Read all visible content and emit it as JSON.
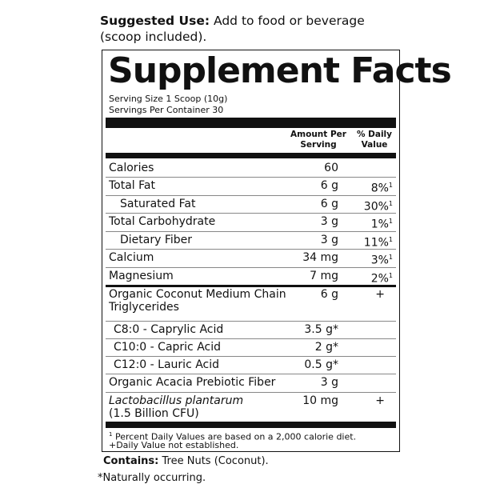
{
  "suggested_use": {
    "label": "Suggested Use:",
    "text": " Add to food or beverage",
    "text2": "(scoop included)."
  },
  "title": "Supplement Facts",
  "serving_size": "Serving Size 1 Scoop (10g)",
  "servings_per_container": "Servings Per Container 30",
  "headers": {
    "amount_1": "Amount Per",
    "amount_2": "Serving",
    "dv_1": "% Daily",
    "dv_2": "Value"
  },
  "rows": [
    {
      "name": "Calories",
      "amount": "60",
      "dv": ""
    },
    {
      "name": "Total Fat",
      "amount": "6 g",
      "dv": "8%",
      "sup": "1"
    },
    {
      "name": "Saturated Fat",
      "amount": "6 g",
      "dv": "30%",
      "sup": "1"
    },
    {
      "name": "Total Carbohydrate",
      "amount": "3 g",
      "dv": "1%",
      "sup": "1"
    },
    {
      "name": "Dietary Fiber",
      "amount": "3 g",
      "dv": "11%",
      "sup": "1"
    },
    {
      "name": "Calcium",
      "amount": "34 mg",
      "dv": "3%",
      "sup": "1"
    },
    {
      "name": "Magnesium",
      "amount": "7 mg",
      "dv": "2%",
      "sup": "1"
    },
    {
      "name": "Organic Coconut Medium Chain",
      "name2": "Triglycerides",
      "amount": "6 g",
      "dv": "+"
    },
    {
      "name": "C8:0 - Caprylic Acid",
      "amount": "3.5 g*",
      "dv": ""
    },
    {
      "name": "C10:0 - Capric Acid",
      "amount": "2 g*",
      "dv": ""
    },
    {
      "name": "C12:0 - Lauric Acid",
      "amount": "0.5 g*",
      "dv": ""
    },
    {
      "name": "Organic Acacia Prebiotic Fiber",
      "amount": "3 g",
      "dv": ""
    },
    {
      "name": "Lactobacillus plantarum",
      "name2": "(1.5 Billion CFU)",
      "amount": "10 mg",
      "dv": "+"
    }
  ],
  "footnotes": {
    "sup": "1",
    "note1": "Percent Daily Values are based on a 2,000 calorie diet.",
    "note2": "+Daily Value not established."
  },
  "contains": {
    "label": "Contains:",
    "text": " Tree Nuts (Coconut)."
  },
  "naturally": "*Naturally occurring."
}
